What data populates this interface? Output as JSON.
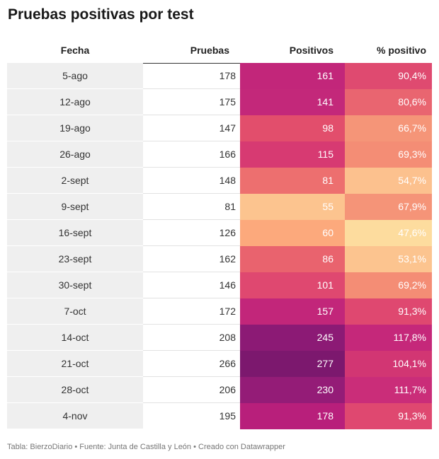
{
  "title": "Pruebas positivas por test",
  "columns": [
    "Fecha",
    "Pruebas",
    "Positivos",
    "% positivo"
  ],
  "footer": "Tabla: BierzoDiario • Fuente: Junta de Castilla y León • Creado con Datawrapper",
  "chart_data": {
    "type": "table",
    "title": "Pruebas positivas por test",
    "columns": [
      "Fecha",
      "Pruebas",
      "Positivos",
      "% positivo"
    ],
    "rows": [
      {
        "fecha": "5-ago",
        "pruebas": 178,
        "positivos": 161,
        "pct": "90,4%",
        "pos_color": "#c2267a",
        "pct_color": "#df4a70"
      },
      {
        "fecha": "12-ago",
        "pruebas": 175,
        "positivos": 141,
        "pct": "80,6%",
        "pos_color": "#c3287a",
        "pct_color": "#e96570"
      },
      {
        "fecha": "19-ago",
        "pruebas": 147,
        "positivos": 98,
        "pct": "66,7%",
        "pos_color": "#e24e6c",
        "pct_color": "#f59578"
      },
      {
        "fecha": "26-ago",
        "pruebas": 166,
        "positivos": 115,
        "pct": "69,3%",
        "pos_color": "#d73a72",
        "pct_color": "#f48d75"
      },
      {
        "fecha": "2-sept",
        "pruebas": 148,
        "positivos": 81,
        "pct": "54,7%",
        "pos_color": "#ed6f6f",
        "pct_color": "#fcc18e"
      },
      {
        "fecha": "9-sept",
        "pruebas": 81,
        "positivos": 55,
        "pct": "67,9%",
        "pos_color": "#fcc48f",
        "pct_color": "#f59478"
      },
      {
        "fecha": "16-sept",
        "pruebas": 126,
        "positivos": 60,
        "pct": "47,6%",
        "pos_color": "#fca97c",
        "pct_color": "#fddc9e"
      },
      {
        "fecha": "23-sept",
        "pruebas": 162,
        "positivos": 86,
        "pct": "53,1%",
        "pos_color": "#e9636e",
        "pct_color": "#fcc48f"
      },
      {
        "fecha": "30-sept",
        "pruebas": 146,
        "positivos": 101,
        "pct": "69,2%",
        "pos_color": "#df4870",
        "pct_color": "#f48d75"
      },
      {
        "fecha": "7-oct",
        "pruebas": 172,
        "positivos": 157,
        "pct": "91,3%",
        "pos_color": "#c2267a",
        "pct_color": "#df4870"
      },
      {
        "fecha": "14-oct",
        "pruebas": 208,
        "positivos": 245,
        "pct": "117,8%",
        "pos_color": "#8c1a75",
        "pct_color": "#c5287a"
      },
      {
        "fecha": "21-oct",
        "pruebas": 266,
        "positivos": 277,
        "pct": "104,1%",
        "pos_color": "#7c186e",
        "pct_color": "#d23673"
      },
      {
        "fecha": "28-oct",
        "pruebas": 206,
        "positivos": 230,
        "pct": "111,7%",
        "pos_color": "#941c77",
        "pct_color": "#ca2d79"
      },
      {
        "fecha": "4-nov",
        "pruebas": 195,
        "positivos": 178,
        "pct": "91,3%",
        "pos_color": "#b81f7b",
        "pct_color": "#df4870"
      }
    ]
  }
}
